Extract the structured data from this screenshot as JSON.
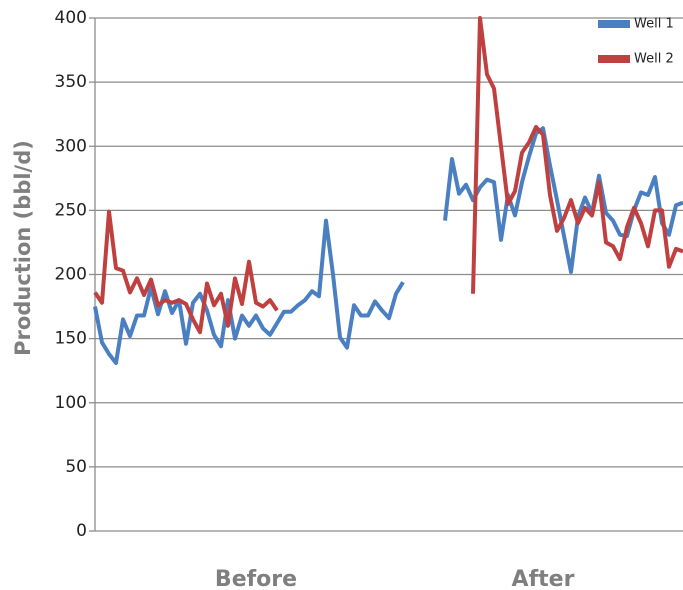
{
  "chart_data": {
    "type": "line",
    "y_label": "Production (bbl/d)",
    "categories": [
      null,
      null,
      null,
      null,
      null,
      null,
      null,
      null,
      null,
      null,
      null,
      null,
      null,
      null,
      null,
      null,
      null,
      null,
      null,
      null,
      null,
      null,
      null,
      "Before",
      null,
      null,
      null,
      null,
      null,
      null,
      null,
      null,
      null,
      null,
      null,
      null,
      null,
      null,
      null,
      null,
      null,
      null,
      null,
      null,
      null,
      null,
      null,
      null,
      null,
      null,
      null,
      null,
      null,
      null,
      null,
      null,
      null,
      null,
      null,
      null,
      null,
      null,
      null,
      null,
      "After",
      null,
      null,
      null,
      null,
      null,
      null,
      null,
      null,
      null,
      null,
      null,
      null,
      null,
      null,
      null,
      null,
      null,
      null,
      null,
      null
    ],
    "series": [
      {
        "name": "Well 1",
        "color": "#4a7fc1",
        "values": [
          175,
          147,
          138,
          131,
          165,
          152,
          168,
          168,
          190,
          169,
          187,
          170,
          180,
          146,
          178,
          185,
          172,
          153,
          144,
          180,
          150,
          168,
          160,
          168,
          158,
          153,
          162,
          171,
          171,
          176,
          180,
          187,
          183,
          242,
          200,
          151,
          143,
          176,
          168,
          168,
          179,
          172,
          166,
          185,
          194,
          null,
          null,
          null,
          null,
          null,
          242,
          290,
          263,
          270,
          258,
          268,
          274,
          272,
          227,
          262,
          246,
          272,
          292,
          310,
          314,
          285,
          258,
          230,
          202,
          245,
          260,
          248,
          277,
          248,
          242,
          231,
          230,
          250,
          264,
          262,
          276,
          240,
          231,
          254,
          256
        ]
      },
      {
        "name": "Well 2",
        "color": "#c0403f",
        "values": [
          186,
          178,
          249,
          205,
          203,
          186,
          197,
          184,
          196,
          176,
          180,
          178,
          180,
          177,
          165,
          155,
          193,
          176,
          185,
          160,
          197,
          177,
          210,
          178,
          175,
          180,
          172,
          null,
          null,
          null,
          null,
          null,
          null,
          null,
          null,
          null,
          null,
          null,
          null,
          null,
          null,
          null,
          null,
          null,
          null,
          null,
          null,
          null,
          null,
          null,
          null,
          null,
          null,
          null,
          185,
          400,
          356,
          345,
          300,
          255,
          265,
          295,
          303,
          315,
          309,
          262,
          234,
          244,
          258,
          240,
          252,
          246,
          272,
          225,
          222,
          212,
          237,
          252,
          240,
          222,
          250,
          250,
          206,
          220,
          218
        ]
      }
    ],
    "ylim": [
      0,
      400
    ],
    "yticks": [
      0,
      50,
      100,
      150,
      200,
      250,
      300,
      350,
      400
    ],
    "grid": true,
    "legend": "top-right"
  }
}
